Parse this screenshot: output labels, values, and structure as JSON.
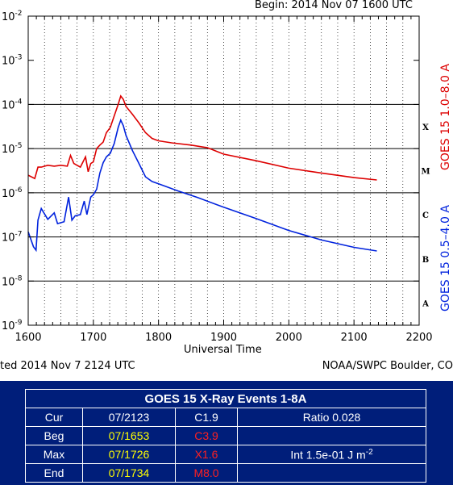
{
  "header": {
    "begin": "Begin: 2014 Nov 07 1600 UTC",
    "updated": "ted 2014 Nov  7 2124 UTC",
    "source": "NOAA/SWPC Boulder, CO"
  },
  "chart_data": {
    "type": "line",
    "xlabel": "Universal Time",
    "x_ticks": [
      "1600",
      "1700",
      "1800",
      "1900",
      "2000",
      "2100",
      "2200"
    ],
    "xlim": [
      1600,
      2200
    ],
    "y_scale": "log",
    "ylim": [
      1e-09,
      0.01
    ],
    "y_tick_labels": [
      {
        "base": "10",
        "exp": "-2"
      },
      {
        "base": "10",
        "exp": "-3"
      },
      {
        "base": "10",
        "exp": "-4"
      },
      {
        "base": "10",
        "exp": "-5"
      },
      {
        "base": "10",
        "exp": "-6"
      },
      {
        "base": "10",
        "exp": "-7"
      },
      {
        "base": "10",
        "exp": "-8"
      },
      {
        "base": "10",
        "exp": "-9"
      }
    ],
    "flare_classes": [
      {
        "label": "X",
        "value": 0.0001
      },
      {
        "label": "M",
        "value": 1e-05
      },
      {
        "label": "C",
        "value": 1e-06
      },
      {
        "label": "B",
        "value": 1e-07
      },
      {
        "label": "A",
        "value": 1e-08
      }
    ],
    "grid": true,
    "series": [
      {
        "name": "GOES 15 1.0–8.0 A",
        "color": "#dd0000",
        "points": [
          [
            1600,
            2.5e-06
          ],
          [
            1610,
            2.1e-06
          ],
          [
            1615,
            3.8e-06
          ],
          [
            1620,
            3.8e-06
          ],
          [
            1630,
            4.2e-06
          ],
          [
            1640,
            4e-06
          ],
          [
            1650,
            4.2e-06
          ],
          [
            1660,
            4e-06
          ],
          [
            1665,
            7e-06
          ],
          [
            1670,
            4.6e-06
          ],
          [
            1680,
            3.8e-06
          ],
          [
            1688,
            6.5e-06
          ],
          [
            1692,
            3e-06
          ],
          [
            1696,
            4.6e-06
          ],
          [
            1700,
            5e-06
          ],
          [
            1705,
            1e-05
          ],
          [
            1710,
            1.2e-05
          ],
          [
            1715,
            1.4e-05
          ],
          [
            1720,
            2.3e-05
          ],
          [
            1726,
            3e-05
          ],
          [
            1732,
            5.5e-05
          ],
          [
            1738,
            0.0001
          ],
          [
            1742,
            0.000155
          ],
          [
            1746,
            0.00013
          ],
          [
            1750,
            9e-05
          ],
          [
            1760,
            6e-05
          ],
          [
            1770,
            3.8e-05
          ],
          [
            1780,
            2.3e-05
          ],
          [
            1790,
            1.7e-05
          ],
          [
            1800,
            1.5e-05
          ],
          [
            1820,
            1.35e-05
          ],
          [
            1850,
            1.2e-05
          ],
          [
            1875,
            1.05e-05
          ],
          [
            1900,
            7.5e-06
          ],
          [
            1950,
            5.3e-06
          ],
          [
            2000,
            3.6e-06
          ],
          [
            2050,
            2.8e-06
          ],
          [
            2100,
            2.2e-06
          ],
          [
            2135,
            1.95e-06
          ]
        ]
      },
      {
        "name": "GOES 15 0.5–4.0 A",
        "color": "#0022dd",
        "points": [
          [
            1600,
            1.3e-07
          ],
          [
            1608,
            6e-08
          ],
          [
            1612,
            5e-08
          ],
          [
            1615,
            2.4e-07
          ],
          [
            1620,
            4.4e-07
          ],
          [
            1630,
            2.5e-07
          ],
          [
            1640,
            3.5e-07
          ],
          [
            1645,
            2e-07
          ],
          [
            1655,
            2.2e-07
          ],
          [
            1662,
            8e-07
          ],
          [
            1667,
            2.4e-07
          ],
          [
            1672,
            3e-07
          ],
          [
            1680,
            3.2e-07
          ],
          [
            1686,
            6.5e-07
          ],
          [
            1690,
            3.2e-07
          ],
          [
            1696,
            8e-07
          ],
          [
            1700,
            9e-07
          ],
          [
            1705,
            1.2e-06
          ],
          [
            1710,
            2.8e-06
          ],
          [
            1715,
            4.8e-06
          ],
          [
            1720,
            6.5e-06
          ],
          [
            1726,
            7.8e-06
          ],
          [
            1732,
            1.3e-05
          ],
          [
            1738,
            3e-05
          ],
          [
            1742,
            4.4e-05
          ],
          [
            1746,
            3.3e-05
          ],
          [
            1750,
            2e-05
          ],
          [
            1760,
            9e-06
          ],
          [
            1770,
            4.6e-06
          ],
          [
            1780,
            2.3e-06
          ],
          [
            1790,
            1.8e-06
          ],
          [
            1800,
            1.6e-06
          ],
          [
            1830,
            1.1e-06
          ],
          [
            1860,
            7.8e-07
          ],
          [
            1900,
            4.7e-07
          ],
          [
            1950,
            2.6e-07
          ],
          [
            2000,
            1.4e-07
          ],
          [
            2050,
            8.5e-08
          ],
          [
            2100,
            5.8e-08
          ],
          [
            2135,
            4.8e-08
          ]
        ]
      }
    ]
  },
  "events": {
    "title": "GOES 15 X-Ray Events 1-8A",
    "rows": [
      {
        "label": "Cur",
        "time": "07/2123",
        "cls": "C1.9",
        "extra": "Ratio 0.028",
        "time_color": "#ffffff",
        "cls_color": "#ffffff"
      },
      {
        "label": "Beg",
        "time": "07/1653",
        "cls": "C3.9",
        "extra": "",
        "time_color": "#ffff00",
        "cls_color": "#ff2020"
      },
      {
        "label": "Max",
        "time": "07/1726",
        "cls": "X1.6",
        "extra": "Int 1.5e-01 J m",
        "extra_exp": "-2",
        "time_color": "#ffff00",
        "cls_color": "#ff2020"
      },
      {
        "label": "End",
        "time": "07/1734",
        "cls": "M8.0",
        "extra": "",
        "time_color": "#ffff00",
        "cls_color": "#ff2020"
      }
    ]
  },
  "colors": {
    "panel_bg": "#001e7a",
    "long_channel": "#dd0000",
    "short_channel": "#0022dd"
  }
}
